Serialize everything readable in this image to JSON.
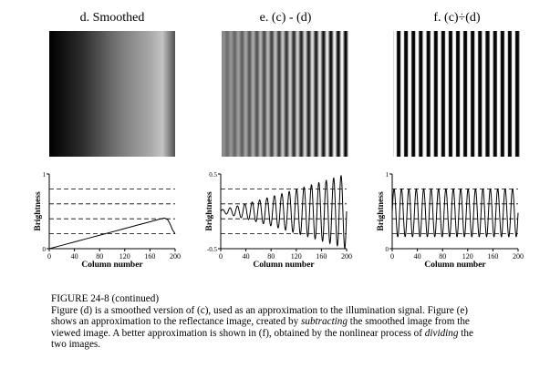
{
  "figure": {
    "panels": [
      {
        "id": "d",
        "title": "d.  Smoothed",
        "image": "smoothed-gradient"
      },
      {
        "id": "e",
        "title": "e.  (c) - (d)",
        "image": "subtracted-stripes"
      },
      {
        "id": "f",
        "title": "f.  (c)÷(d)",
        "image": "divided-stripes"
      }
    ],
    "caption": {
      "heading": "FIGURE 24-8 (continued)",
      "lines": [
        [
          {
            "t": "Figure (d) is a smoothed version of (c), used as an approximation to the illumination signal.  Figure (e)"
          }
        ],
        [
          {
            "t": "shows an approximation to the reflectance image, created by "
          },
          {
            "t": "subtracting",
            "i": true
          },
          {
            "t": " the smoothed image from the"
          }
        ],
        [
          {
            "t": "viewed image.  A better approximation is shown in (f), obtained by the nonlinear process of "
          },
          {
            "t": "dividing",
            "i": true
          },
          {
            "t": " the"
          }
        ],
        [
          {
            "t": "two images."
          }
        ]
      ]
    }
  },
  "chart_data": [
    {
      "type": "line",
      "panel": "d",
      "xlabel": "Column number",
      "ylabel": "Brightness",
      "xlim": [
        0,
        200
      ],
      "ylim": [
        0,
        1
      ],
      "x_ticks": [
        0,
        40,
        80,
        120,
        160,
        200
      ],
      "y_ticks": [
        0,
        1
      ],
      "dashed_levels": [
        0.2,
        0.4,
        0.6,
        0.8
      ],
      "series": [
        {
          "x": [
            0,
            20,
            40,
            60,
            80,
            100,
            120,
            140,
            160,
            175,
            183,
            188,
            192,
            196,
            200
          ],
          "y": [
            0.0,
            0.045,
            0.09,
            0.135,
            0.18,
            0.225,
            0.27,
            0.315,
            0.36,
            0.395,
            0.41,
            0.39,
            0.33,
            0.25,
            0.2
          ]
        }
      ]
    },
    {
      "type": "line",
      "panel": "e",
      "xlabel": "Column number",
      "ylabel": "Brightness",
      "xlim": [
        0,
        200
      ],
      "ylim": [
        -0.5,
        0.5
      ],
      "x_ticks": [
        0,
        40,
        80,
        120,
        160,
        200
      ],
      "y_ticks": [
        -0.5,
        0.5
      ],
      "dashed_levels": [
        -0.3,
        -0.1,
        0.1,
        0.3
      ],
      "series": [
        {
          "function": "growing-oscillation",
          "cycles": 17,
          "amplitude_start": 0.02,
          "amplitude_end": 0.5,
          "offset": 0.0
        }
      ]
    },
    {
      "type": "line",
      "panel": "f",
      "xlabel": "Column number",
      "ylabel": "Brightness",
      "xlim": [
        0,
        200
      ],
      "ylim": [
        0,
        1
      ],
      "x_ticks": [
        0,
        40,
        80,
        120,
        160,
        200
      ],
      "y_ticks": [
        0,
        1
      ],
      "dashed_levels": [
        0.2,
        0.4,
        0.6,
        0.8
      ],
      "series": [
        {
          "function": "constant-oscillation",
          "cycles": 17,
          "amplitude": 0.32,
          "offset": 0.48
        }
      ]
    }
  ]
}
